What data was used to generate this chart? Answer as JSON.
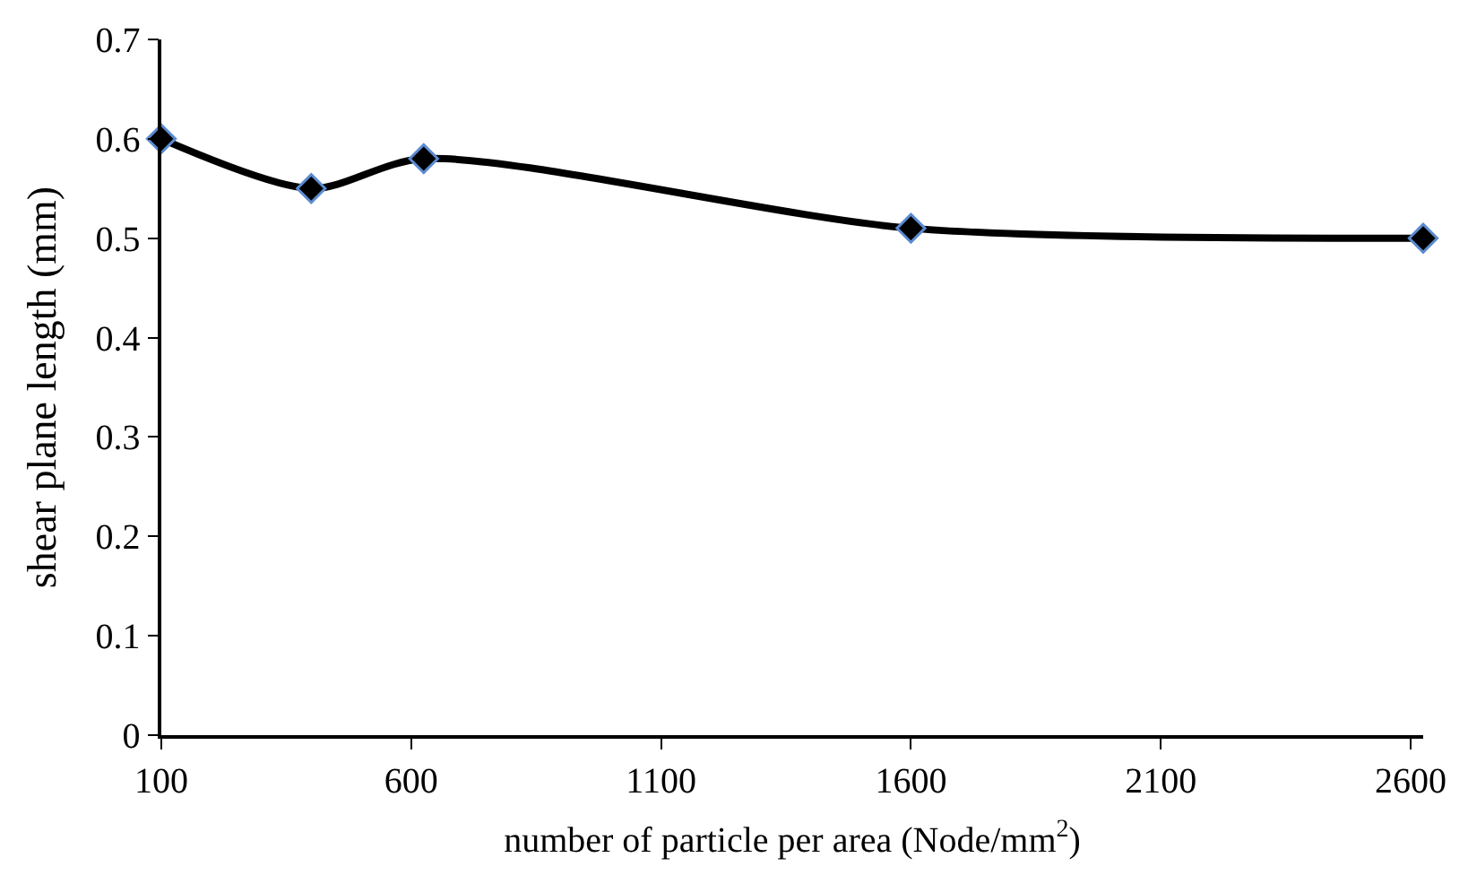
{
  "chart_data": {
    "type": "line",
    "xlabel": "number of particle per area (Node/mm$^{2}$)",
    "ylabel": "shear plane length (mm)",
    "x": [
      100,
      400,
      625,
      1600,
      2625
    ],
    "series": [
      {
        "color": "#000000",
        "values": [
          0.6,
          0.55,
          0.58,
          0.51,
          0.5
        ]
      }
    ],
    "xlim": [
      100,
      2625
    ],
    "xticks": [
      100,
      600,
      1100,
      1600,
      2100,
      2600
    ],
    "ylim": [
      0,
      0.7
    ],
    "yticks": [
      0,
      0.1,
      0.2,
      0.3,
      0.4,
      0.5,
      0.6,
      0.7
    ],
    "grid": false,
    "legend": false,
    "marker": "diamond",
    "line_style": "solid"
  }
}
